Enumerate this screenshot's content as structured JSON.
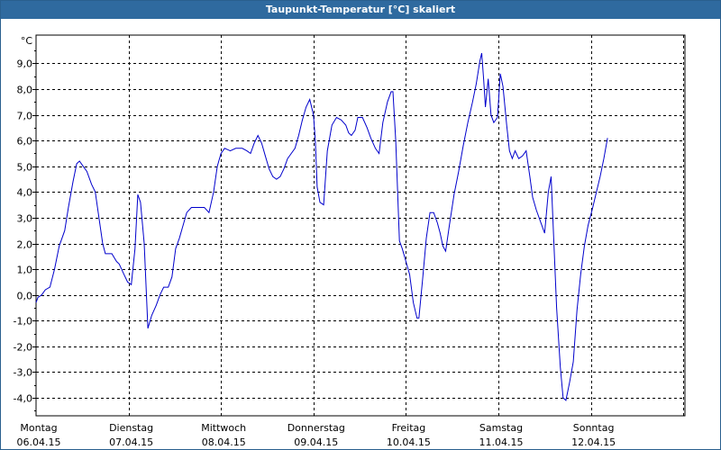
{
  "window": {
    "title": "Taupunkt-Temperatur [°C] skaliert"
  },
  "colors": {
    "titlebar_bg": "#2f6a9f",
    "titlebar_text": "#ffffff",
    "line": "#0000cc",
    "grid": "#000000",
    "background": "#ffffff"
  },
  "chart_data": {
    "type": "line",
    "title": "Taupunkt-Temperatur [°C] skaliert",
    "ylabel": "°C",
    "xlabel": "",
    "ylim": [
      -4.7,
      10.1
    ],
    "xlim": [
      0,
      7
    ],
    "x_unit": "days since Monday 06.04.15 00:00",
    "grid": true,
    "y_ticks": [
      "9,0",
      "8,0",
      "7,0",
      "6,0",
      "5,0",
      "4,0",
      "3,0",
      "2,0",
      "1,0",
      "0,0",
      "-1,0",
      "-2,0",
      "-3,0",
      "-4,0"
    ],
    "y_tick_values": [
      9,
      8,
      7,
      6,
      5,
      4,
      3,
      2,
      1,
      0,
      -1,
      -2,
      -3,
      -4
    ],
    "x_ticks": [
      {
        "day": "Montag",
        "date": "06.04.15"
      },
      {
        "day": "Dienstag",
        "date": "07.04.15"
      },
      {
        "day": "Mittwoch",
        "date": "08.04.15"
      },
      {
        "day": "Donnerstag",
        "date": "09.04.15"
      },
      {
        "day": "Freitag",
        "date": "10.04.15"
      },
      {
        "day": "Samstag",
        "date": "11.04.15"
      },
      {
        "day": "Sonntag",
        "date": "12.04.15"
      }
    ],
    "series": [
      {
        "values": [
          [
            0.0,
            -0.3
          ],
          [
            0.02,
            -0.1
          ],
          [
            0.06,
            0.0
          ],
          [
            0.1,
            0.2
          ],
          [
            0.15,
            0.3
          ],
          [
            0.2,
            1.0
          ],
          [
            0.25,
            1.9
          ],
          [
            0.31,
            2.5
          ],
          [
            0.35,
            3.4
          ],
          [
            0.4,
            4.4
          ],
          [
            0.44,
            5.1
          ],
          [
            0.47,
            5.2
          ],
          [
            0.51,
            5.0
          ],
          [
            0.55,
            4.8
          ],
          [
            0.6,
            4.3
          ],
          [
            0.64,
            4.0
          ],
          [
            0.68,
            3.0
          ],
          [
            0.72,
            2.0
          ],
          [
            0.75,
            1.6
          ],
          [
            0.82,
            1.6
          ],
          [
            0.87,
            1.3
          ],
          [
            0.9,
            1.2
          ],
          [
            0.95,
            0.8
          ],
          [
            0.99,
            0.5
          ],
          [
            1.03,
            0.4
          ],
          [
            1.07,
            1.8
          ],
          [
            1.1,
            3.9
          ],
          [
            1.13,
            3.6
          ],
          [
            1.17,
            2.0
          ],
          [
            1.21,
            -1.3
          ],
          [
            1.25,
            -0.8
          ],
          [
            1.3,
            -0.4
          ],
          [
            1.34,
            0.0
          ],
          [
            1.38,
            0.3
          ],
          [
            1.43,
            0.3
          ],
          [
            1.47,
            0.7
          ],
          [
            1.51,
            1.8
          ],
          [
            1.55,
            2.2
          ],
          [
            1.59,
            2.7
          ],
          [
            1.63,
            3.2
          ],
          [
            1.68,
            3.4
          ],
          [
            1.74,
            3.4
          ],
          [
            1.82,
            3.4
          ],
          [
            1.87,
            3.2
          ],
          [
            1.92,
            4.0
          ],
          [
            1.96,
            5.0
          ],
          [
            2.0,
            5.5
          ],
          [
            2.04,
            5.7
          ],
          [
            2.1,
            5.6
          ],
          [
            2.16,
            5.7
          ],
          [
            2.23,
            5.7
          ],
          [
            2.28,
            5.6
          ],
          [
            2.32,
            5.5
          ],
          [
            2.36,
            5.9
          ],
          [
            2.4,
            6.2
          ],
          [
            2.44,
            5.9
          ],
          [
            2.48,
            5.4
          ],
          [
            2.52,
            4.9
          ],
          [
            2.56,
            4.6
          ],
          [
            2.6,
            4.5
          ],
          [
            2.64,
            4.6
          ],
          [
            2.68,
            4.9
          ],
          [
            2.72,
            5.3
          ],
          [
            2.76,
            5.5
          ],
          [
            2.8,
            5.7
          ],
          [
            2.84,
            6.2
          ],
          [
            2.88,
            6.8
          ],
          [
            2.92,
            7.3
          ],
          [
            2.96,
            7.6
          ],
          [
            3.0,
            7.0
          ],
          [
            3.02,
            6.0
          ],
          [
            3.04,
            4.2
          ],
          [
            3.07,
            3.6
          ],
          [
            3.11,
            3.5
          ],
          [
            3.15,
            5.6
          ],
          [
            3.2,
            6.6
          ],
          [
            3.25,
            6.9
          ],
          [
            3.3,
            6.8
          ],
          [
            3.35,
            6.6
          ],
          [
            3.38,
            6.3
          ],
          [
            3.41,
            6.2
          ],
          [
            3.45,
            6.4
          ],
          [
            3.48,
            6.9
          ],
          [
            3.53,
            6.9
          ],
          [
            3.58,
            6.5
          ],
          [
            3.62,
            6.1
          ],
          [
            3.67,
            5.7
          ],
          [
            3.71,
            5.5
          ],
          [
            3.75,
            6.7
          ],
          [
            3.8,
            7.5
          ],
          [
            3.84,
            7.9
          ],
          [
            3.86,
            7.9
          ],
          [
            3.89,
            6.0
          ],
          [
            3.93,
            2.1
          ],
          [
            3.96,
            1.8
          ],
          [
            4.0,
            1.3
          ],
          [
            4.04,
            0.8
          ],
          [
            4.08,
            -0.3
          ],
          [
            4.12,
            -0.9
          ],
          [
            4.14,
            -0.9
          ],
          [
            4.18,
            0.6
          ],
          [
            4.22,
            2.2
          ],
          [
            4.26,
            3.2
          ],
          [
            4.3,
            3.2
          ],
          [
            4.34,
            2.8
          ],
          [
            4.37,
            2.4
          ],
          [
            4.4,
            1.9
          ],
          [
            4.43,
            1.7
          ],
          [
            4.47,
            2.7
          ],
          [
            4.52,
            3.9
          ],
          [
            4.57,
            4.8
          ],
          [
            4.62,
            5.8
          ],
          [
            4.67,
            6.7
          ],
          [
            4.72,
            7.5
          ],
          [
            4.76,
            8.2
          ],
          [
            4.8,
            9.1
          ],
          [
            4.82,
            9.4
          ],
          [
            4.84,
            8.4
          ],
          [
            4.86,
            7.3
          ],
          [
            4.89,
            8.4
          ],
          [
            4.92,
            7.0
          ],
          [
            4.95,
            6.7
          ],
          [
            4.99,
            6.9
          ],
          [
            5.02,
            8.6
          ],
          [
            5.05,
            8.1
          ],
          [
            5.09,
            6.6
          ],
          [
            5.12,
            5.6
          ],
          [
            5.15,
            5.3
          ],
          [
            5.18,
            5.6
          ],
          [
            5.22,
            5.3
          ],
          [
            5.26,
            5.4
          ],
          [
            5.3,
            5.6
          ],
          [
            5.34,
            4.6
          ],
          [
            5.37,
            3.8
          ],
          [
            5.41,
            3.3
          ],
          [
            5.45,
            2.9
          ],
          [
            5.5,
            2.4
          ],
          [
            5.54,
            4.0
          ],
          [
            5.57,
            4.6
          ],
          [
            5.6,
            2.0
          ],
          [
            5.63,
            -0.5
          ],
          [
            5.67,
            -2.8
          ],
          [
            5.7,
            -4.0
          ],
          [
            5.73,
            -4.1
          ],
          [
            5.77,
            -3.4
          ],
          [
            5.81,
            -2.6
          ],
          [
            5.85,
            -0.6
          ],
          [
            5.89,
            0.8
          ],
          [
            5.93,
            1.9
          ],
          [
            5.97,
            2.7
          ],
          [
            6.02,
            3.4
          ],
          [
            6.06,
            4.0
          ],
          [
            6.1,
            4.6
          ],
          [
            6.14,
            5.3
          ],
          [
            6.18,
            6.1
          ]
        ]
      }
    ]
  }
}
